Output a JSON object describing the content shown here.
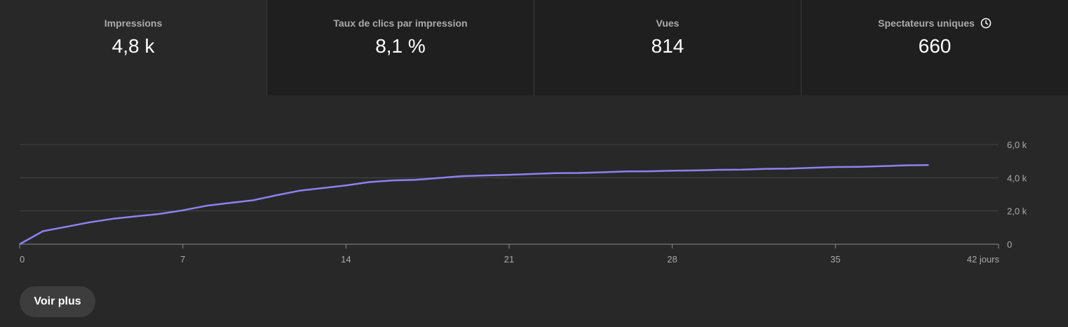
{
  "tabs": [
    {
      "label": "Impressions",
      "value": "4,8 k",
      "active": true
    },
    {
      "label": "Taux de clics par impression",
      "value": "8,1 %",
      "active": false
    },
    {
      "label": "Vues",
      "value": "814",
      "active": false
    },
    {
      "label": "Spectateurs uniques",
      "value": "660",
      "active": false,
      "icon": "clock-icon"
    }
  ],
  "colors": {
    "line": "#8c82f0",
    "grid": "#454545",
    "axis": "#8a8a8a"
  },
  "chart_data": {
    "type": "line",
    "x_ticks": [
      {
        "value": 0,
        "label": "0"
      },
      {
        "value": 7,
        "label": "7"
      },
      {
        "value": 14,
        "label": "14"
      },
      {
        "value": 21,
        "label": "21"
      },
      {
        "value": 28,
        "label": "28"
      },
      {
        "value": 35,
        "label": "35"
      },
      {
        "value": 42,
        "label": "42 jours"
      }
    ],
    "y_ticks": [
      {
        "value": 0,
        "label": "0"
      },
      {
        "value": 2000,
        "label": "2,0 k"
      },
      {
        "value": 4000,
        "label": "4,0 k"
      },
      {
        "value": 6000,
        "label": "6,0 k"
      }
    ],
    "xlim": [
      0,
      42
    ],
    "ylim": [
      0,
      6000
    ],
    "grid": true,
    "series": [
      {
        "x": [
          0,
          1,
          2,
          3,
          4,
          5,
          6,
          7,
          8,
          9,
          10,
          11,
          12,
          13,
          14,
          15,
          16,
          17,
          18,
          19,
          20,
          21,
          22,
          23,
          24,
          25,
          26,
          27,
          28,
          29,
          30,
          31,
          32,
          33,
          34,
          35,
          36,
          37,
          38,
          39
        ],
        "y": [
          0,
          780,
          1050,
          1320,
          1530,
          1680,
          1820,
          2040,
          2310,
          2480,
          2640,
          2940,
          3220,
          3380,
          3540,
          3740,
          3840,
          3880,
          3990,
          4100,
          4140,
          4180,
          4230,
          4280,
          4290,
          4330,
          4380,
          4390,
          4430,
          4440,
          4480,
          4490,
          4540,
          4550,
          4600,
          4650,
          4660,
          4700,
          4750,
          4760
        ]
      }
    ]
  },
  "more_button": {
    "label": "Voir plus"
  }
}
